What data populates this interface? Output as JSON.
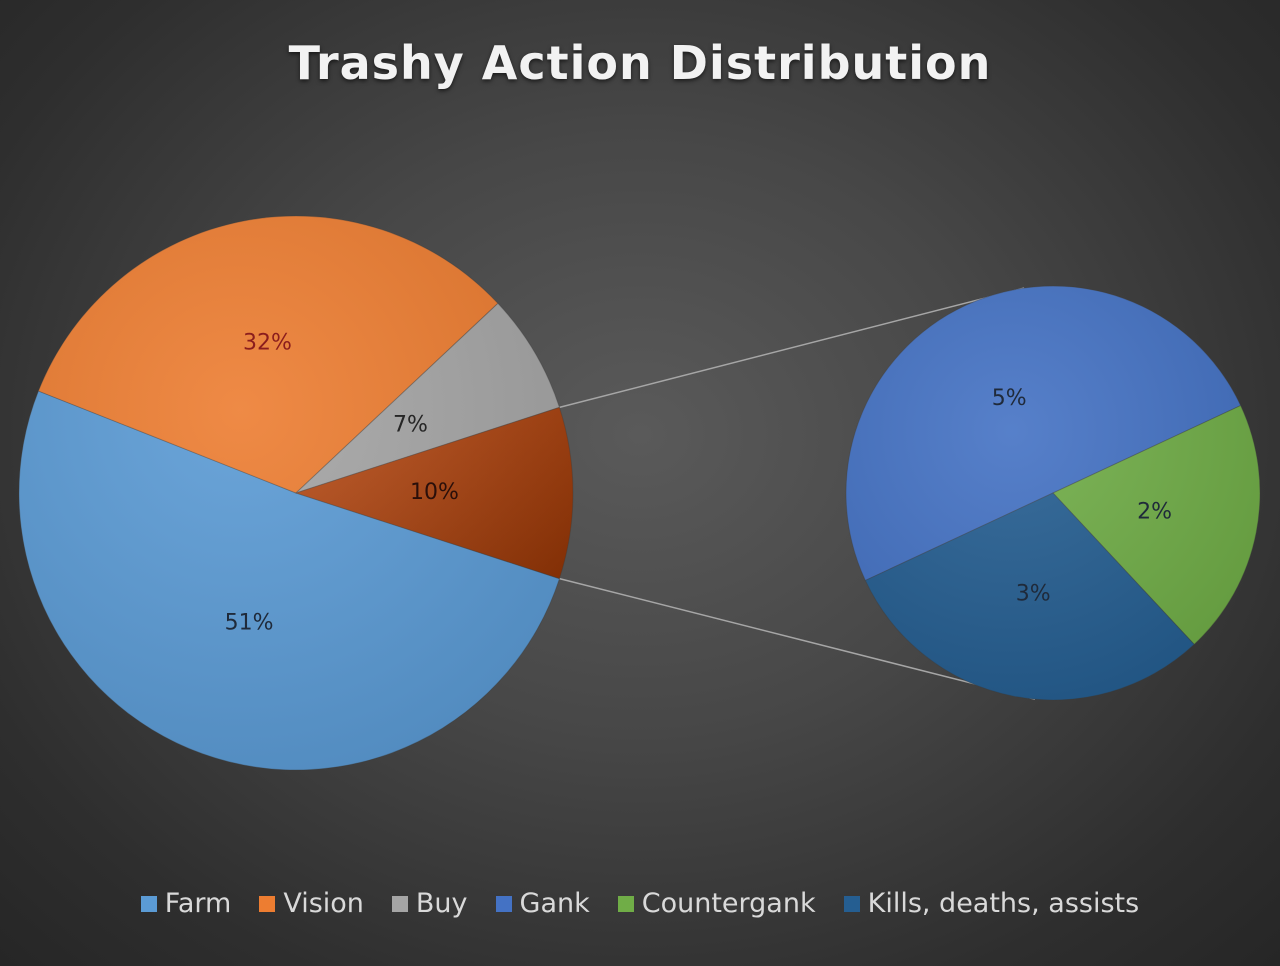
{
  "chart_data": {
    "type": "pie",
    "title": "Trashy Action Distribution",
    "subtype": "pie-of-pie",
    "slices": [
      {
        "name": "Farm",
        "value": 51,
        "label": "51%",
        "color": "#5b9bd5",
        "label_color": "#1f2a3a",
        "group": "main"
      },
      {
        "name": "Vision",
        "value": 32,
        "label": "32%",
        "color": "#ed7d31",
        "label_color": "#8b1d1d",
        "group": "main"
      },
      {
        "name": "Buy",
        "value": 7,
        "label": "7%",
        "color": "#a5a5a5",
        "label_color": "#262626",
        "group": "main"
      },
      {
        "name": "Gank",
        "value": 5,
        "label": "5%",
        "color": "#4472c4",
        "label_color": "#1f2a3a",
        "group": "secondary"
      },
      {
        "name": "Countergank",
        "value": 2,
        "label": "2%",
        "color": "#70ad47",
        "label_color": "#1f2a3a",
        "group": "secondary"
      },
      {
        "name": "Kills, deaths, assists",
        "value": 3,
        "label": "3%",
        "color": "#255e91",
        "label_color": "#1f2a3a",
        "group": "secondary"
      }
    ],
    "other_slice": {
      "value": 10,
      "label": "10%",
      "color": "#b94a16",
      "label_color": "#2a0f0a"
    },
    "legend_position": "bottom"
  }
}
